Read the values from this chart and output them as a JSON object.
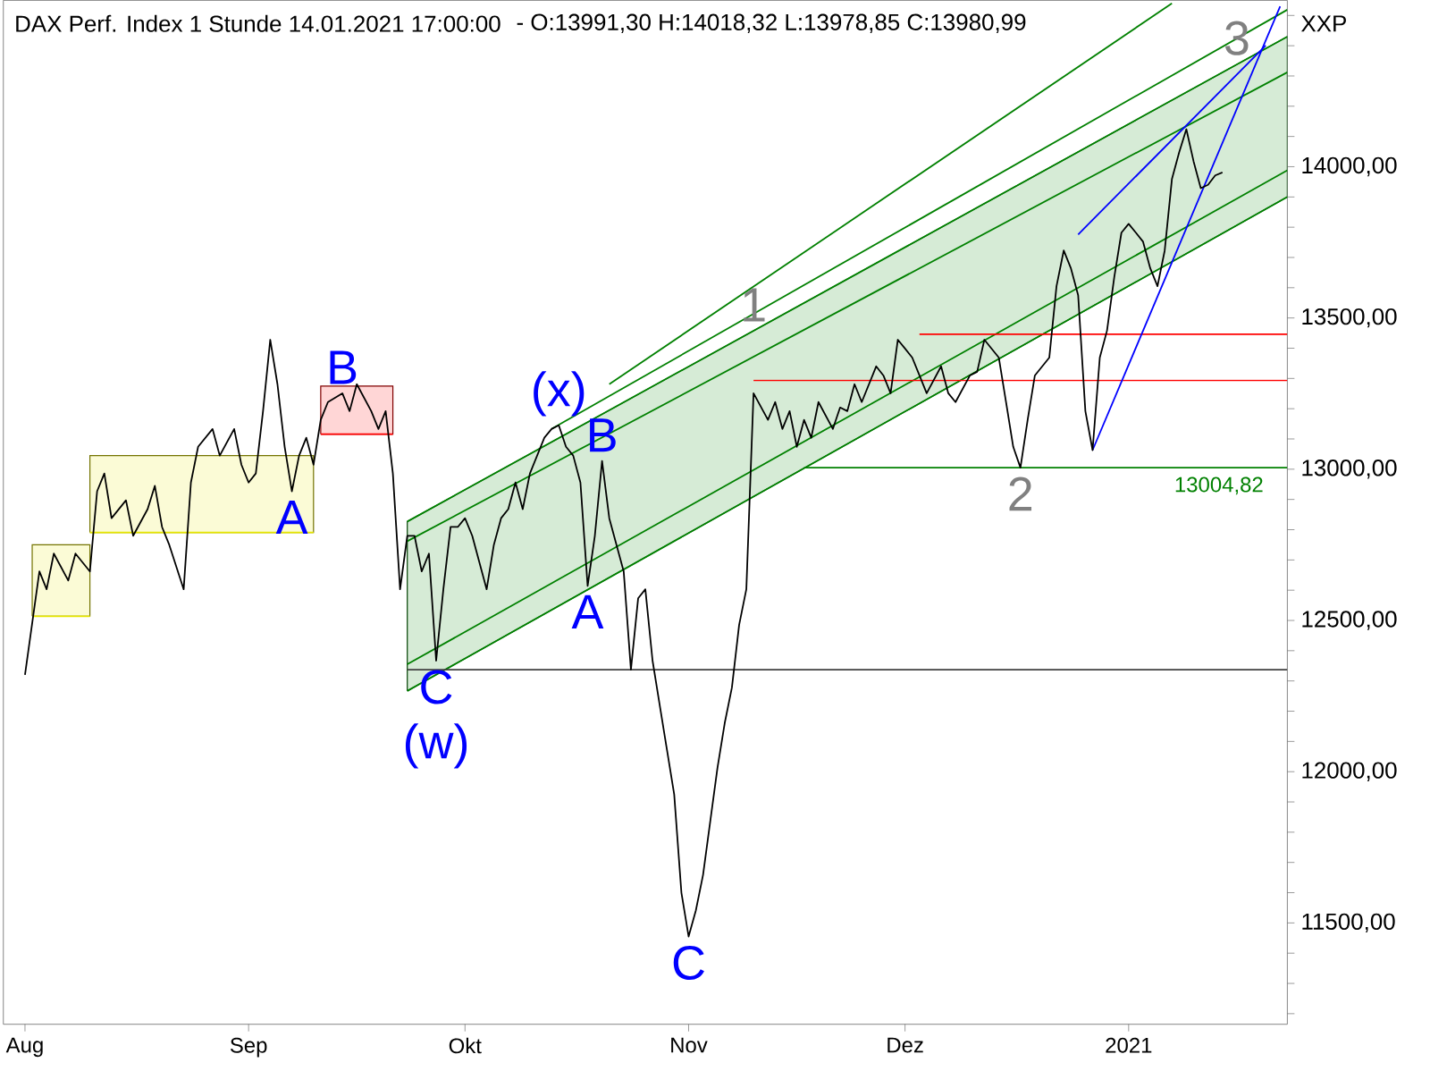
{
  "chart_data": {
    "type": "line",
    "title": "DAX Perf. Index 1 Stunde  14.01.2021 17:00:00",
    "subtitle": "- O:13991,30 H:14018,32 L:13978,85 C:13980,99",
    "ylabel": "XXP",
    "xlim": [
      "2020-07-29",
      "2021-01-23"
    ],
    "xticks": [
      {
        "value": "2020-08-01",
        "label": "Aug"
      },
      {
        "value": "2020-09-01",
        "label": "Sep"
      },
      {
        "value": "2020-10-01",
        "label": "Okt"
      },
      {
        "value": "2020-11-01",
        "label": "Nov"
      },
      {
        "value": "2020-12-01",
        "label": "Dez"
      },
      {
        "value": "2021-01-01",
        "label": "2021"
      }
    ],
    "ylim": [
      11165,
      14550
    ],
    "yticks": [
      {
        "value": 11500,
        "label": "11500,00"
      },
      {
        "value": 12000,
        "label": "12000,00"
      },
      {
        "value": 12500,
        "label": "12500,00"
      },
      {
        "value": 13000,
        "label": "13000,00"
      },
      {
        "value": 13500,
        "label": "13500,00"
      },
      {
        "value": 14000,
        "label": "14000,00"
      },
      {
        "value": 11200,
        "label": null
      },
      {
        "value": 11300,
        "label": null
      },
      {
        "value": 11400,
        "label": null
      },
      {
        "value": 11600,
        "label": null
      },
      {
        "value": 11700,
        "label": null
      },
      {
        "value": 11800,
        "label": null
      },
      {
        "value": 11900,
        "label": null
      },
      {
        "value": 12100,
        "label": null
      },
      {
        "value": 12200,
        "label": null
      },
      {
        "value": 12300,
        "label": null
      },
      {
        "value": 12400,
        "label": null
      },
      {
        "value": 12600,
        "label": null
      },
      {
        "value": 12700,
        "label": null
      },
      {
        "value": 12800,
        "label": null
      },
      {
        "value": 12900,
        "label": null
      },
      {
        "value": 13100,
        "label": null
      },
      {
        "value": 13200,
        "label": null
      },
      {
        "value": 13300,
        "label": null
      },
      {
        "value": 13400,
        "label": null
      },
      {
        "value": 13600,
        "label": null
      },
      {
        "value": 13700,
        "label": null
      },
      {
        "value": 13800,
        "label": null
      },
      {
        "value": 13900,
        "label": null
      },
      {
        "value": 14100,
        "label": null
      },
      {
        "value": 14200,
        "label": null
      },
      {
        "value": 14300,
        "label": null
      },
      {
        "value": 14400,
        "label": null
      },
      {
        "value": 14500,
        "label": null
      }
    ],
    "series": [
      {
        "color": "#008000",
        "x": [
          "2020-09-23",
          "2021-01-23"
        ],
        "values": [
          12762,
          14312
        ],
        "lower": [
          12267,
          13900
        ],
        "upper": [
          12827,
          14430
        ]
      },
      {
        "color": "#e6e600",
        "x": [
          "2020-08-02",
          "2020-08-10"
        ],
        "values": [
          12514,
          12514
        ],
        "lower": [
          12514,
          12514
        ],
        "upper": [
          12750,
          12750
        ]
      },
      {
        "color": "#e6e600",
        "x": [
          "2020-08-10",
          "2020-09-10"
        ],
        "values": [
          12791,
          12791
        ],
        "lower": [
          12791,
          12791
        ],
        "upper": [
          13045,
          13045
        ]
      },
      {
        "color": "#ff0000",
        "x": [
          "2020-09-11",
          "2020-09-21"
        ],
        "values": [
          13116,
          13116
        ],
        "lower": [
          13116,
          13116
        ],
        "upper": [
          13275,
          13275
        ]
      },
      {
        "color": "#008000",
        "x": [
          "2020-09-23",
          "2021-01-23"
        ],
        "values": [
          12355,
          13988
        ]
      },
      {
        "color": "#008000",
        "x": [
          "2020-10-13",
          "2021-01-23"
        ],
        "values": [
          13133,
          14519
        ]
      },
      {
        "color": "#008000",
        "x": [
          "2020-10-21",
          "2021-01-07"
        ],
        "values": [
          13281,
          14540
        ]
      },
      {
        "color": "#008000",
        "x": [
          "2020-09-23",
          "2021-01-23"
        ],
        "values": [
          12827,
          14430
        ]
      },
      {
        "color": "#008000",
        "x": [
          "2020-09-23",
          "2021-01-23"
        ],
        "values": [
          12267,
          13900
        ]
      },
      {
        "color": "#404040",
        "x": [
          "2020-09-23",
          "2021-01-23"
        ],
        "values": [
          12337,
          12337
        ]
      },
      {
        "color": "#008000",
        "x": [
          "2020-11-17",
          "2021-01-23"
        ],
        "values": [
          13004.82,
          13004.82
        ]
      },
      {
        "color": "#ff0000",
        "x": [
          "2020-11-10",
          "2021-01-23"
        ],
        "values": [
          13293,
          13293
        ]
      },
      {
        "color": "#ff0000",
        "x": [
          "2020-12-03",
          "2021-01-23"
        ],
        "values": [
          13446,
          13446
        ]
      },
      {
        "color": "#0000ff",
        "x": [
          "2020-12-25",
          "2021-01-20"
        ],
        "values": [
          13776,
          14401
        ]
      },
      {
        "color": "#0000ff",
        "x": [
          "2020-12-27",
          "2021-01-22"
        ],
        "values": [
          13063,
          14530
        ]
      },
      {
        "color": "#000000",
        "x": [
          "2020-08-01",
          "2020-08-03",
          "2020-08-04",
          "2020-08-05",
          "2020-08-07",
          "2020-08-08",
          "2020-08-10",
          "2020-08-11",
          "2020-08-12",
          "2020-08-13",
          "2020-08-15",
          "2020-08-16",
          "2020-08-18",
          "2020-08-19",
          "2020-08-20",
          "2020-08-21",
          "2020-08-23",
          "2020-08-24",
          "2020-08-25",
          "2020-08-27",
          "2020-08-28",
          "2020-08-30",
          "2020-08-31",
          "2020-09-01",
          "2020-09-02",
          "2020-09-03",
          "2020-09-04",
          "2020-09-05",
          "2020-09-06",
          "2020-09-07",
          "2020-09-08",
          "2020-09-09",
          "2020-09-10",
          "2020-09-11",
          "2020-09-12",
          "2020-09-14",
          "2020-09-15",
          "2020-09-16",
          "2020-09-18",
          "2020-09-19",
          "2020-09-20",
          "2020-09-21",
          "2020-09-22",
          "2020-09-23",
          "2020-09-24",
          "2020-09-25",
          "2020-09-26",
          "2020-09-27",
          "2020-09-28",
          "2020-09-29",
          "2020-09-30",
          "2020-10-01",
          "2020-10-02",
          "2020-10-04",
          "2020-10-05",
          "2020-10-06",
          "2020-10-07",
          "2020-10-08",
          "2020-10-09",
          "2020-10-10",
          "2020-10-11",
          "2020-10-12",
          "2020-10-13",
          "2020-10-14",
          "2020-10-15",
          "2020-10-16",
          "2020-10-17",
          "2020-10-18",
          "2020-10-19",
          "2020-10-20",
          "2020-10-21",
          "2020-10-22",
          "2020-10-23",
          "2020-10-24",
          "2020-10-25",
          "2020-10-26",
          "2020-10-27",
          "2020-10-28",
          "2020-10-29",
          "2020-10-30",
          "2020-10-31",
          "2020-11-01",
          "2020-11-02",
          "2020-11-03",
          "2020-11-04",
          "2020-11-05",
          "2020-11-06",
          "2020-11-07",
          "2020-11-08",
          "2020-11-09",
          "2020-11-10",
          "2020-11-12",
          "2020-11-13",
          "2020-11-14",
          "2020-11-15",
          "2020-11-16",
          "2020-11-17",
          "2020-11-18",
          "2020-11-19",
          "2020-11-21",
          "2020-11-22",
          "2020-11-23",
          "2020-11-24",
          "2020-11-25",
          "2020-11-27",
          "2020-11-28",
          "2020-11-29",
          "2020-11-30",
          "2020-12-01",
          "2020-12-02",
          "2020-12-03",
          "2020-12-04",
          "2020-12-06",
          "2020-12-07",
          "2020-12-08",
          "2020-12-10",
          "2020-12-11",
          "2020-12-12",
          "2020-12-14",
          "2020-12-15",
          "2020-12-16",
          "2020-12-17",
          "2020-12-18",
          "2020-12-19",
          "2020-12-21",
          "2020-12-22",
          "2020-12-23",
          "2020-12-24",
          "2020-12-25",
          "2020-12-26",
          "2020-12-27",
          "2020-12-28",
          "2020-12-29",
          "2020-12-30",
          "2020-12-31",
          "2021-01-01",
          "2021-01-02",
          "2021-01-03",
          "2021-01-04",
          "2021-01-05",
          "2021-01-06",
          "2021-01-07",
          "2021-01-08",
          "2021-01-09",
          "2021-01-10",
          "2021-01-11",
          "2021-01-12",
          "2021-01-13",
          "2021-01-14"
        ],
        "values": [
          12320,
          12662,
          12603,
          12721,
          12632,
          12721,
          12662,
          12927,
          12986,
          12838,
          12897,
          12780,
          12868,
          12945,
          12809,
          12750,
          12603,
          12956,
          13074,
          13133,
          13045,
          13133,
          13015,
          12956,
          12986,
          13192,
          13428,
          13281,
          13074,
          12927,
          13045,
          13104,
          13015,
          13163,
          13222,
          13251,
          13192,
          13281,
          13192,
          13133,
          13192,
          12986,
          12603,
          12780,
          12780,
          12662,
          12721,
          12367,
          12603,
          12809,
          12809,
          12838,
          12780,
          12603,
          12750,
          12838,
          12868,
          12956,
          12868,
          12986,
          13045,
          13104,
          13133,
          13145,
          13074,
          13045,
          12956,
          12614,
          12780,
          13027,
          12838,
          12750,
          12662,
          12337,
          12573,
          12603,
          12367,
          12219,
          12072,
          11925,
          11600,
          11455,
          11541,
          11659,
          11836,
          12013,
          12160,
          12278,
          12485,
          12603,
          13251,
          13163,
          13222,
          13133,
          13192,
          13074,
          13163,
          13104,
          13222,
          13133,
          13204,
          13192,
          13281,
          13222,
          13340,
          13310,
          13251,
          13428,
          13399,
          13369,
          13310,
          13251,
          13340,
          13251,
          13222,
          13310,
          13322,
          13428,
          13369,
          13222,
          13074,
          13005,
          13163,
          13310,
          13369,
          13605,
          13723,
          13664,
          13575,
          13192,
          13063,
          13369,
          13458,
          13634,
          13782,
          13811,
          13782,
          13752,
          13664,
          13605,
          13723,
          13959,
          14047,
          14124,
          14018,
          13929,
          13940,
          13971,
          13981
        ]
      }
    ],
    "annotations": [
      {
        "text": "B",
        "x": "2020-09-14",
        "y": 13251
      },
      {
        "text": "A",
        "x": "2020-09-07",
        "y": 12927
      },
      {
        "text": "(x)",
        "x": "2020-10-14",
        "y": 13145
      },
      {
        "text": "B",
        "x": "2020-10-20",
        "y": 13027
      },
      {
        "text": "A",
        "x": "2020-10-18",
        "y": 12614
      },
      {
        "text": "C",
        "x": "2020-09-27",
        "y": 12367
      },
      {
        "text": "(w)",
        "x": "2020-09-27",
        "y": 12367
      },
      {
        "text": "C",
        "x": "2020-11-01",
        "y": 11455
      },
      {
        "text": "1",
        "x": "2020-11-10",
        "y": 13458
      },
      {
        "text": "2",
        "x": "2020-12-17",
        "y": 13005
      },
      {
        "text": "3",
        "x": "2021-01-16",
        "y": 14338
      },
      {
        "text": "13004,82",
        "x": "2021-01-20",
        "y": 13004.82
      }
    ]
  }
}
